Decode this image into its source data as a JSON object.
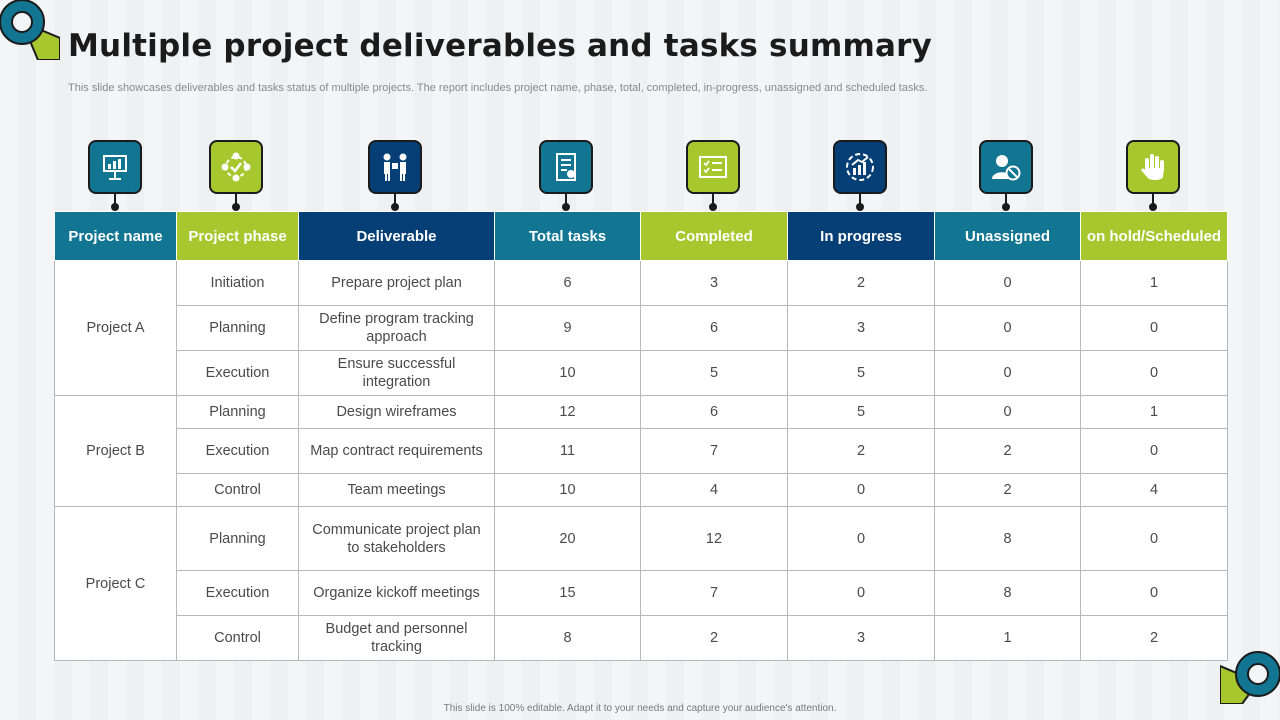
{
  "title": "Multiple project deliverables and tasks summary",
  "subtitle": "This slide showcases deliverables and tasks status of multiple projects. The report includes project name, phase, total, completed, in-progress, unassigned and scheduled tasks.",
  "footer": "This slide is 100% editable. Adapt it to your needs and capture your audience's attention.",
  "colors": {
    "teal": "#127592",
    "lime": "#a7c72f",
    "navy": "#053f76",
    "dark": "#1b1b1b"
  },
  "icons": [
    "presentation-board-icon",
    "process-cycle-icon",
    "handover-icon",
    "task-list-icon",
    "completed-checklist-icon",
    "progress-chart-icon",
    "unassigned-user-icon",
    "hold-hand-icon"
  ],
  "table": {
    "headers": [
      {
        "label": "Project name",
        "color": "#127592"
      },
      {
        "label": "Project phase",
        "color": "#a7c72f"
      },
      {
        "label": "Deliverable",
        "color": "#053f76"
      },
      {
        "label": "Total tasks",
        "color": "#127592"
      },
      {
        "label": "Completed",
        "color": "#a7c72f"
      },
      {
        "label": "In progress",
        "color": "#053f76"
      },
      {
        "label": "Unassigned",
        "color": "#127592"
      },
      {
        "label": "on hold/Scheduled",
        "color": "#a7c72f"
      }
    ],
    "projects": [
      {
        "name": "Project A",
        "rows": [
          {
            "phase": "Initiation",
            "deliverable": "Prepare project plan",
            "total": "6",
            "completed": "3",
            "in_progress": "2",
            "unassigned": "0",
            "scheduled": "1"
          },
          {
            "phase": "Planning",
            "deliverable": "Define program tracking approach",
            "total": "9",
            "completed": "6",
            "in_progress": "3",
            "unassigned": "0",
            "scheduled": "0"
          },
          {
            "phase": "Execution",
            "deliverable": "Ensure successful integration",
            "total": "10",
            "completed": "5",
            "in_progress": "5",
            "unassigned": "0",
            "scheduled": "0"
          }
        ]
      },
      {
        "name": "Project B",
        "rows": [
          {
            "phase": "Planning",
            "deliverable": "Design wireframes",
            "total": "12",
            "completed": "6",
            "in_progress": "5",
            "unassigned": "0",
            "scheduled": "1"
          },
          {
            "phase": "Execution",
            "deliverable": "Map contract requirements",
            "total": "11",
            "completed": "7",
            "in_progress": "2",
            "unassigned": "2",
            "scheduled": "0"
          },
          {
            "phase": "Control",
            "deliverable": "Team meetings",
            "total": "10",
            "completed": "4",
            "in_progress": "0",
            "unassigned": "2",
            "scheduled": "4"
          }
        ]
      },
      {
        "name": "Project C",
        "rows": [
          {
            "phase": "Planning",
            "deliverable": "Communicate project plan to stakeholders",
            "total": "20",
            "completed": "12",
            "in_progress": "0",
            "unassigned": "8",
            "scheduled": "0"
          },
          {
            "phase": "Execution",
            "deliverable": "Organize kickoff meetings",
            "total": "15",
            "completed": "7",
            "in_progress": "0",
            "unassigned": "8",
            "scheduled": "0"
          },
          {
            "phase": "Control",
            "deliverable": "Budget and personnel tracking",
            "total": "8",
            "completed": "2",
            "in_progress": "3",
            "unassigned": "1",
            "scheduled": "2"
          }
        ]
      }
    ]
  }
}
